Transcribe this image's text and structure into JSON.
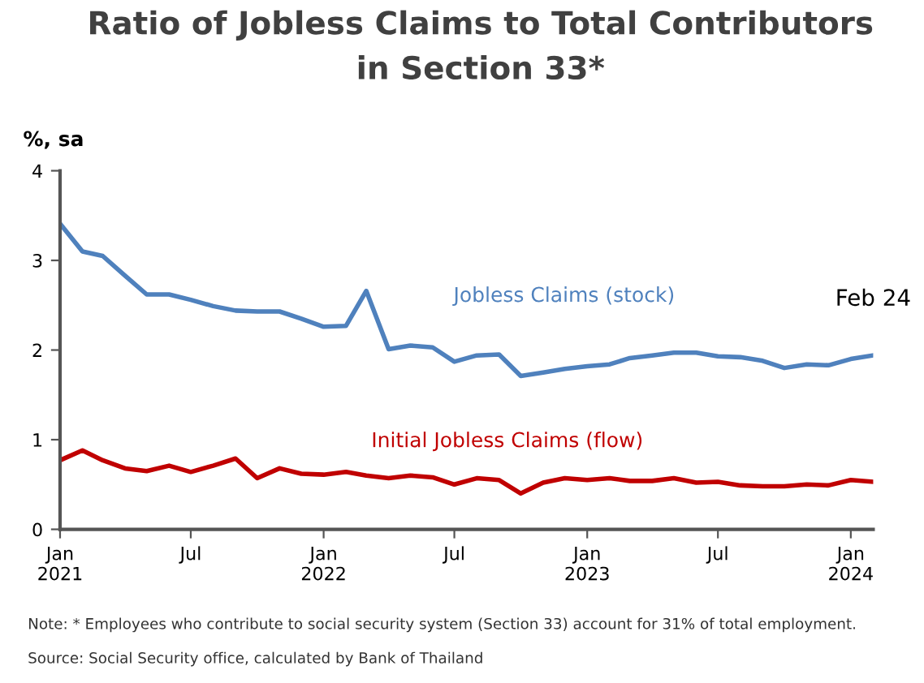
{
  "chart_data": {
    "type": "line",
    "title": "Ratio of Jobless Claims to Total Contributors\nin Section 33*",
    "ylabel": "%, sa",
    "x": [
      "2021-01",
      "2021-02",
      "2021-03",
      "2021-04",
      "2021-05",
      "2021-06",
      "2021-07",
      "2021-08",
      "2021-09",
      "2021-10",
      "2021-11",
      "2021-12",
      "2022-01",
      "2022-02",
      "2022-03",
      "2022-04",
      "2022-05",
      "2022-06",
      "2022-07",
      "2022-08",
      "2022-09",
      "2022-10",
      "2022-11",
      "2022-12",
      "2023-01",
      "2023-02",
      "2023-03",
      "2023-04",
      "2023-05",
      "2023-06",
      "2023-07",
      "2023-08",
      "2023-09",
      "2023-10",
      "2023-11",
      "2023-12",
      "2024-01",
      "2024-02"
    ],
    "series": [
      {
        "name": "Jobless Claims (stock)",
        "color": "#4f81bd",
        "values": [
          3.41,
          3.1,
          3.05,
          2.83,
          2.62,
          2.62,
          2.56,
          2.49,
          2.44,
          2.43,
          2.43,
          2.35,
          2.26,
          2.27,
          2.66,
          2.01,
          2.05,
          2.03,
          1.87,
          1.94,
          1.95,
          1.71,
          1.75,
          1.79,
          1.82,
          1.84,
          1.91,
          1.94,
          1.97,
          1.97,
          1.93,
          1.92,
          1.88,
          1.8,
          1.84,
          1.83,
          1.9,
          1.94
        ]
      },
      {
        "name": "Initial Jobless Claims (flow)",
        "color": "#c00000",
        "values": [
          0.77,
          0.88,
          0.77,
          0.68,
          0.65,
          0.71,
          0.64,
          0.71,
          0.79,
          0.57,
          0.68,
          0.62,
          0.61,
          0.64,
          0.6,
          0.57,
          0.6,
          0.58,
          0.5,
          0.57,
          0.55,
          0.4,
          0.52,
          0.57,
          0.55,
          0.57,
          0.54,
          0.54,
          0.57,
          0.52,
          0.53,
          0.49,
          0.48,
          0.48,
          0.5,
          0.49,
          0.55,
          0.53
        ]
      }
    ],
    "xlim": [
      "2021-01",
      "2024-02"
    ],
    "xticks": [
      {
        "value": "2021-01",
        "label": "Jan\n2021"
      },
      {
        "value": "2021-07",
        "label": "Jul"
      },
      {
        "value": "2022-01",
        "label": "Jan\n2022"
      },
      {
        "value": "2022-07",
        "label": "Jul"
      },
      {
        "value": "2023-01",
        "label": "Jan\n2023"
      },
      {
        "value": "2023-07",
        "label": "Jul"
      },
      {
        "value": "2024-01",
        "label": "Jan\n2024"
      }
    ],
    "ylim": [
      0,
      4
    ],
    "yticks": [
      0,
      1,
      2,
      3,
      4
    ],
    "grid": false,
    "legend": false,
    "line_style": "solid",
    "marker": "none",
    "annotations": [
      {
        "text": "Feb 24",
        "x": "2024-02",
        "y": 1.94
      },
      "Note: * Employees who contribute to social security system (Section 33) account for 31% of total employment.",
      "Source: Social Security office, calculated by Bank of Thailand"
    ]
  }
}
